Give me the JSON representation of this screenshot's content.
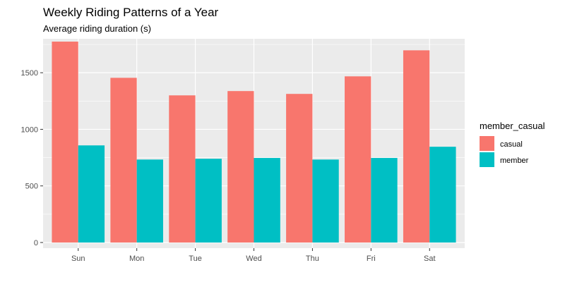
{
  "chart_data": {
    "type": "bar",
    "title": "Weekly Riding Patterns of a Year",
    "subtitle": "Average riding duration (s)",
    "xlabel": "",
    "ylabel": "",
    "categories": [
      "Sun",
      "Mon",
      "Tue",
      "Wed",
      "Thu",
      "Fri",
      "Sat"
    ],
    "series": [
      {
        "name": "casual",
        "color": "#F8766D",
        "values": [
          1775,
          1455,
          1300,
          1338,
          1313,
          1468,
          1698
        ]
      },
      {
        "name": "member",
        "color": "#00BFC4",
        "values": [
          858,
          733,
          740,
          747,
          733,
          747,
          846
        ]
      }
    ],
    "ylim": [
      -50,
      1800
    ],
    "yticks": [
      0,
      500,
      1000,
      1500
    ],
    "grid": true,
    "legend": {
      "title": "member_casual",
      "position": "right"
    },
    "panel_background": "#EBEBEB",
    "grid_color": "#FFFFFF"
  }
}
